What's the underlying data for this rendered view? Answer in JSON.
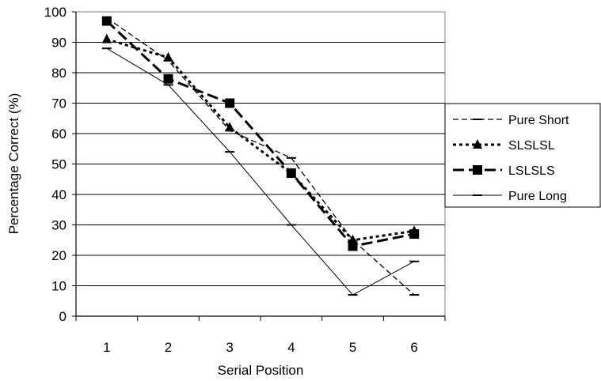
{
  "chart_data": {
    "type": "line",
    "title": "",
    "xlabel": "Serial Position",
    "ylabel": "Percentage Correct (%)",
    "x": [
      1,
      2,
      3,
      4,
      5,
      6
    ],
    "ylim": [
      0,
      100
    ],
    "yticks": [
      0,
      10,
      20,
      30,
      40,
      50,
      60,
      70,
      80,
      90,
      100
    ],
    "grid": true,
    "legend_position": "right",
    "series": [
      {
        "name": "Pure Short",
        "style": "dashed-dash-marker",
        "color": "#000000",
        "values": [
          98,
          84,
          61,
          52,
          25,
          7
        ]
      },
      {
        "name": "SLSLSL",
        "style": "dotted-triangle-marker",
        "color": "#000000",
        "values": [
          91,
          85,
          62,
          47,
          25,
          28
        ]
      },
      {
        "name": "LSLSLS",
        "style": "thick-dashed-square-marker",
        "color": "#000000",
        "values": [
          97,
          78,
          70,
          47,
          23,
          27
        ]
      },
      {
        "name": "Pure Long",
        "style": "solid-dash-marker",
        "color": "#000000",
        "values": [
          88,
          76,
          54,
          30,
          7,
          18
        ]
      }
    ]
  }
}
